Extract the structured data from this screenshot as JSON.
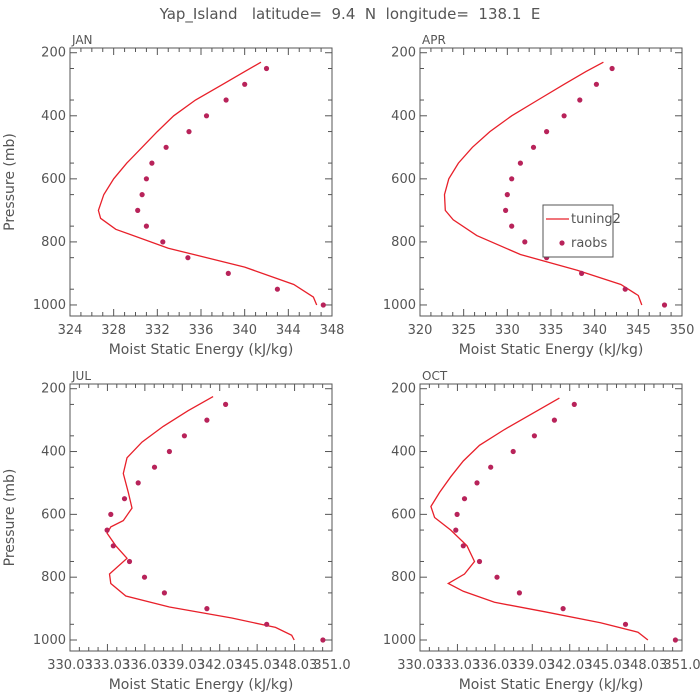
{
  "title": "Yap_Island   latitude=  9.4  N  longitude=  138.1  E",
  "legend": {
    "model": "tuning2",
    "obs": "raobs"
  },
  "colors": {
    "model": "#e8202a",
    "obs": "#b8235a",
    "axis": "#555555"
  },
  "chart_data": [
    {
      "type": "line",
      "label": "JAN",
      "xlabel": "Moist Static Energy (kJ/kg)",
      "ylabel": "Pressure (mb)",
      "xlim": [
        324,
        348
      ],
      "ylim": [
        1000,
        200
      ],
      "xticks": [
        "324",
        "328",
        "332",
        "336",
        "340",
        "344",
        "348"
      ],
      "xtick_values": [
        324,
        328,
        332,
        336,
        340,
        344,
        348
      ],
      "yticks": [
        "200",
        "400",
        "600",
        "800",
        "1000"
      ],
      "ytick_values": [
        200,
        400,
        600,
        800,
        1000
      ],
      "model": {
        "name": "tuning2",
        "mse": [
          341.5,
          340.0,
          338.0,
          335.5,
          333.5,
          332.0,
          330.6,
          329.2,
          328.0,
          327.1,
          326.6,
          326.8,
          328.2,
          333.0,
          340.0,
          344.5,
          346.3,
          346.6
        ],
        "pressure": [
          230,
          260,
          300,
          350,
          400,
          450,
          500,
          550,
          600,
          650,
          700,
          725,
          760,
          820,
          880,
          935,
          975,
          1000
        ]
      },
      "obs": {
        "name": "raobs",
        "mse": [
          342.0,
          340.0,
          338.3,
          336.5,
          334.9,
          332.8,
          331.5,
          331.0,
          330.6,
          330.2,
          331.0,
          332.5,
          334.8,
          338.5,
          343.0,
          347.2
        ],
        "pressure": [
          250,
          300,
          350,
          400,
          450,
          500,
          550,
          600,
          650,
          700,
          750,
          800,
          850,
          900,
          950,
          1000
        ]
      }
    },
    {
      "type": "line",
      "label": "APR",
      "xlabel": "Moist Static Energy (kJ/kg)",
      "ylabel": "",
      "xlim": [
        320,
        350
      ],
      "ylim": [
        1000,
        200
      ],
      "xticks": [
        "320",
        "325",
        "330",
        "335",
        "340",
        "345",
        "350"
      ],
      "xtick_values": [
        320,
        325,
        330,
        335,
        340,
        345,
        350
      ],
      "yticks": [
        "200",
        "400",
        "600",
        "800",
        "1000"
      ],
      "ytick_values": [
        200,
        400,
        600,
        800,
        1000
      ],
      "model": {
        "name": "tuning2",
        "mse": [
          341.0,
          339.0,
          336.5,
          333.5,
          330.5,
          328.0,
          326.0,
          324.4,
          323.3,
          322.8,
          322.9,
          323.8,
          326.5,
          331.5,
          338.0,
          343.0,
          345.0,
          345.4
        ],
        "pressure": [
          230,
          260,
          300,
          350,
          400,
          450,
          500,
          550,
          600,
          650,
          700,
          730,
          780,
          840,
          890,
          935,
          970,
          1000
        ]
      },
      "obs": {
        "name": "raobs",
        "mse": [
          342.0,
          340.2,
          338.3,
          336.5,
          334.5,
          333.0,
          331.5,
          330.5,
          330.0,
          329.8,
          330.5,
          332.0,
          334.5,
          338.5,
          343.5,
          348.0
        ],
        "pressure": [
          250,
          300,
          350,
          400,
          450,
          500,
          550,
          600,
          650,
          700,
          750,
          800,
          850,
          900,
          950,
          1000
        ]
      }
    },
    {
      "type": "line",
      "label": "JUL",
      "xlabel": "Moist Static Energy (kJ/kg)",
      "ylabel": "Pressure (mb)",
      "xlim": [
        330.03,
        351.03
      ],
      "ylim": [
        1000,
        200
      ],
      "xticks": [
        "330.03",
        "333.03",
        "336.03",
        "339.03",
        "342.03",
        "345.03",
        "348.03",
        "351.0"
      ],
      "xtick_values": [
        330.03,
        333.03,
        336.03,
        339.03,
        342.03,
        345.03,
        348.03,
        351.03
      ],
      "yticks": [
        "200",
        "400",
        "600",
        "800",
        "1000"
      ],
      "ytick_values": [
        200,
        400,
        600,
        800,
        1000
      ],
      "model": {
        "name": "tuning2",
        "mse": [
          341.5,
          339.5,
          337.5,
          335.8,
          334.6,
          334.3,
          334.7,
          335.0,
          334.3,
          333.3,
          333.0,
          333.7,
          334.6,
          333.2,
          333.3,
          334.5,
          338.0,
          343.0,
          346.5,
          347.8,
          348.0
        ],
        "pressure": [
          225,
          270,
          320,
          370,
          420,
          470,
          530,
          580,
          620,
          640,
          660,
          700,
          740,
          790,
          820,
          860,
          895,
          930,
          960,
          985,
          1000
        ]
      },
      "obs": {
        "name": "raobs",
        "mse": [
          342.5,
          341.0,
          339.2,
          338.0,
          336.8,
          335.5,
          334.4,
          333.3,
          333.0,
          333.5,
          334.8,
          336.0,
          337.6,
          341.0,
          345.8,
          350.3
        ],
        "pressure": [
          250,
          300,
          350,
          400,
          450,
          500,
          550,
          600,
          650,
          700,
          750,
          800,
          850,
          900,
          950,
          1000
        ]
      }
    },
    {
      "type": "line",
      "label": "OCT",
      "xlabel": "Moist Static Energy (kJ/kg)",
      "ylabel": "",
      "xlim": [
        330.03,
        351.03
      ],
      "ylim": [
        1000,
        200
      ],
      "xticks": [
        "330.03",
        "333.03",
        "336.03",
        "339.03",
        "342.03",
        "345.03",
        "348.03",
        "351.0"
      ],
      "xtick_values": [
        330.03,
        333.03,
        336.03,
        339.03,
        342.03,
        345.03,
        348.03,
        351.03
      ],
      "yticks": [
        "200",
        "400",
        "600",
        "800",
        "1000"
      ],
      "ytick_values": [
        200,
        400,
        600,
        800,
        1000
      ],
      "model": {
        "name": "tuning2",
        "mse": [
          341.2,
          339.0,
          336.8,
          334.8,
          333.5,
          332.5,
          331.6,
          330.9,
          331.2,
          332.5,
          333.8,
          334.4,
          333.6,
          332.3,
          333.5,
          336.0,
          340.0,
          344.5,
          347.5,
          348.3
        ],
        "pressure": [
          230,
          280,
          330,
          380,
          430,
          480,
          530,
          575,
          610,
          650,
          700,
          750,
          790,
          820,
          845,
          880,
          910,
          945,
          975,
          1000
        ]
      },
      "obs": {
        "name": "raobs",
        "mse": [
          342.4,
          340.8,
          339.2,
          337.5,
          335.7,
          334.6,
          333.6,
          333.0,
          332.9,
          333.5,
          334.8,
          336.2,
          338.0,
          341.5,
          346.5,
          350.5
        ],
        "pressure": [
          250,
          300,
          350,
          400,
          450,
          500,
          550,
          600,
          650,
          700,
          750,
          800,
          850,
          900,
          950,
          1000
        ]
      }
    }
  ]
}
